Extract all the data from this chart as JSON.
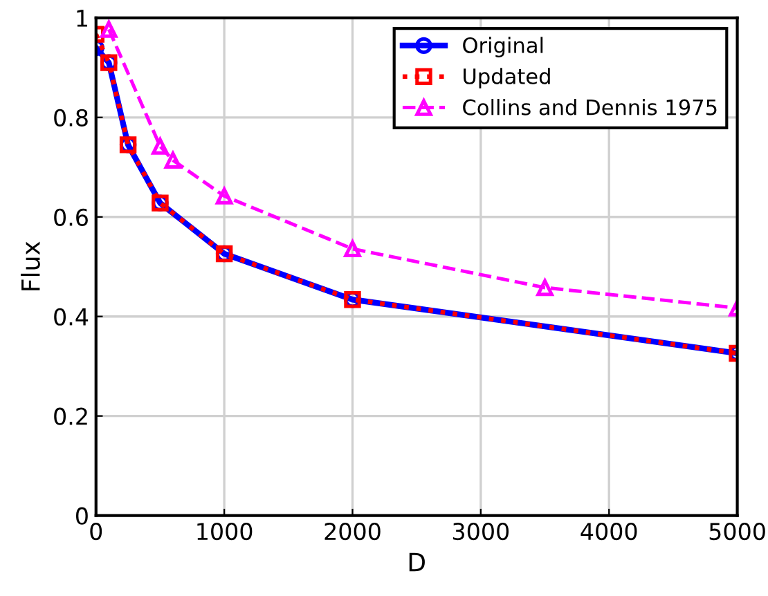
{
  "chart_data": {
    "type": "line",
    "xlabel": "D",
    "ylabel": "Flux",
    "xlim": [
      0,
      5000
    ],
    "xticks": [
      0,
      1000,
      2000,
      3000,
      4000,
      5000
    ],
    "ylim": [
      0,
      1
    ],
    "yticks": [
      0,
      0.2,
      0.4,
      0.6,
      0.8,
      1
    ],
    "grid": true,
    "legend": "top right",
    "series": [
      {
        "name": "Original",
        "color": "#0000ff",
        "marker": "circle",
        "line_style": "solid",
        "x": [
          0,
          100,
          250,
          500,
          1000,
          2000,
          5000
        ],
        "values": [
          0.94,
          0.91,
          0.745,
          0.628,
          0.526,
          0.434,
          0.326
        ]
      },
      {
        "name": "Updated",
        "color": "#ff0000",
        "marker": "square",
        "line_style": "dotted",
        "x": [
          0,
          100,
          250,
          500,
          1000,
          2000,
          5000
        ],
        "values": [
          0.967,
          0.91,
          0.745,
          0.628,
          0.526,
          0.434,
          0.326
        ]
      },
      {
        "name": "Collins and Dennis 1975",
        "color": "#ff00ff",
        "marker": "triangle",
        "line_style": "dashed",
        "x": [
          100,
          500,
          600,
          1000,
          2000,
          3500,
          5000
        ],
        "values": [
          0.977,
          0.742,
          0.714,
          0.642,
          0.536,
          0.458,
          0.417
        ]
      }
    ]
  }
}
